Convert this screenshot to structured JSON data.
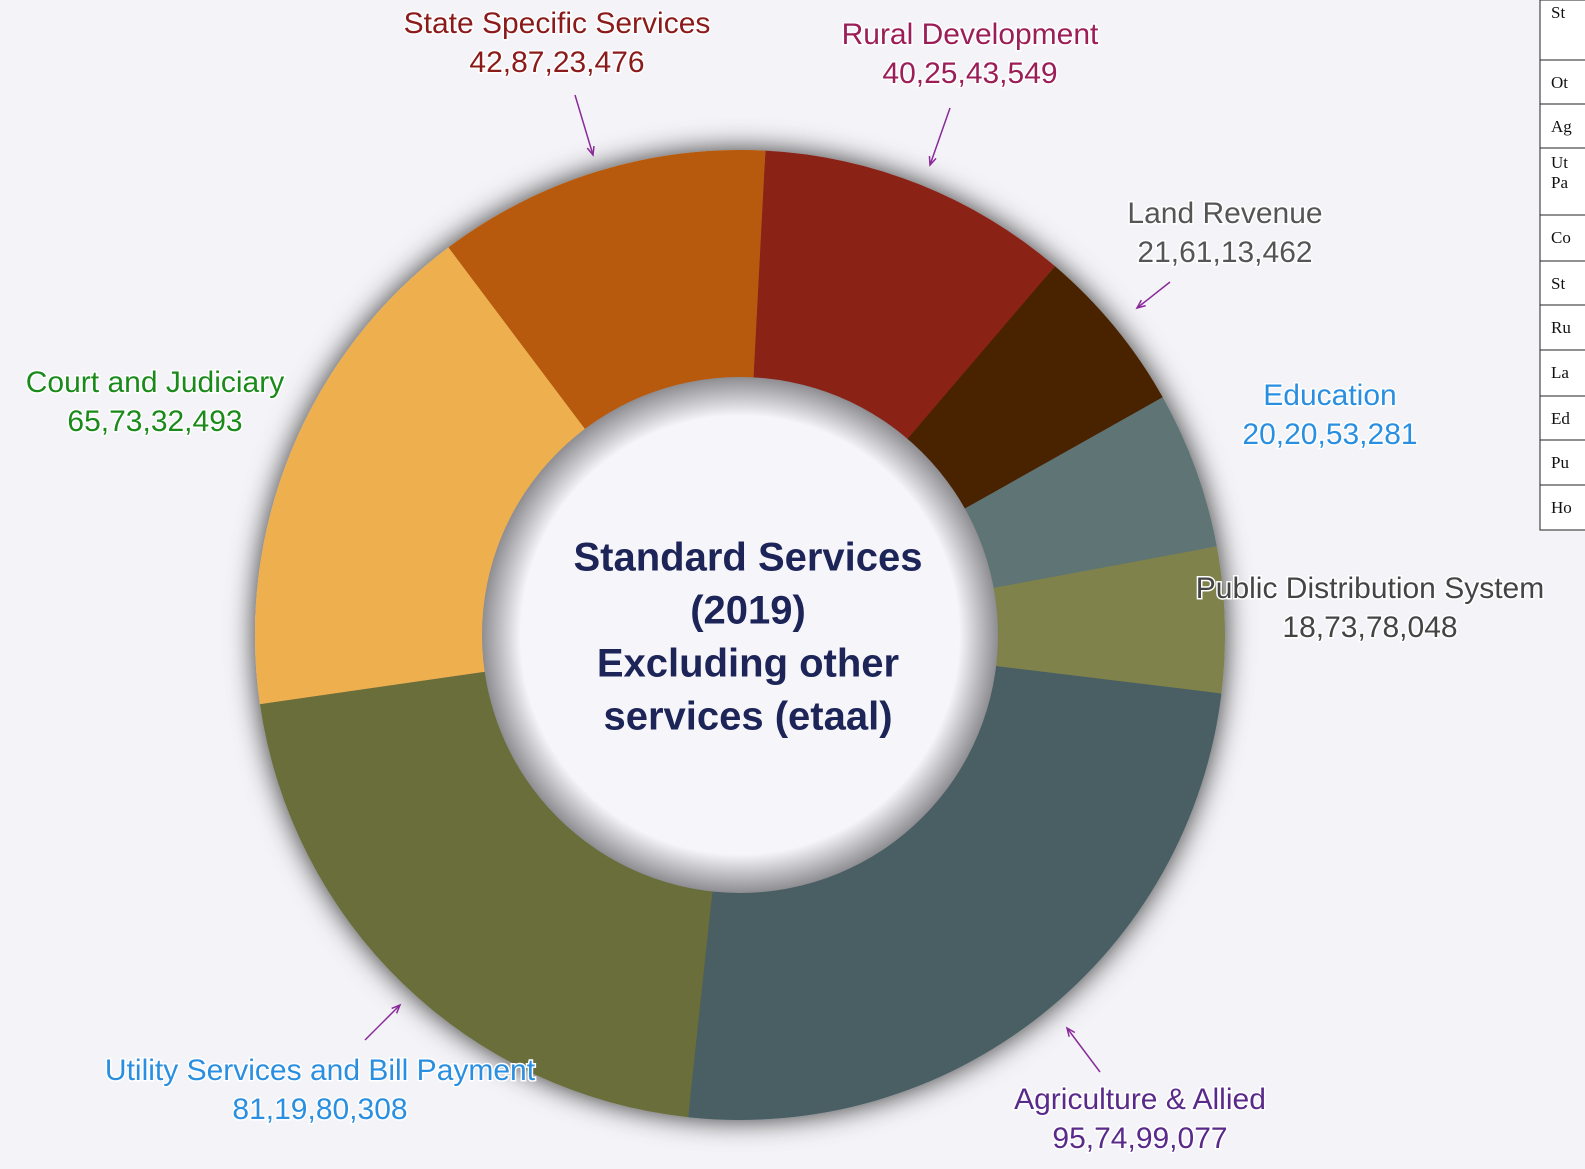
{
  "chart_data": {
    "type": "pie",
    "center_text": [
      "Standard Services",
      "(2019)",
      "Excluding other",
      "services (etaal)"
    ],
    "categories": [
      "Rural Development",
      "Land Revenue",
      "Education",
      "Public Distribution System",
      "Agriculture & Allied",
      "Utility Services and Bill Payment",
      "Court and Judiciary",
      "State Specific Services"
    ],
    "values": [
      402543549,
      216113462,
      202053281,
      187378048,
      957499077,
      811980308,
      657332493,
      428723476
    ],
    "value_labels": [
      "40,25,43,549",
      "21,61,13,462",
      "20,20,53,281",
      "18,73,78,048",
      "95,74,99,077",
      "81,19,80,308",
      "65,73,32,493",
      "42,87,23,476"
    ],
    "colors": [
      "#8a2119",
      "#4a2300",
      "#5e7575",
      "#7f834c",
      "#485f63",
      "#6b6e3a",
      "#eeb04f",
      "#b85a08"
    ],
    "label_colors": [
      "#9b1e58",
      "#555555",
      "#2a8fe0",
      "#444444",
      "#5a2a8a",
      "#2a8fe0",
      "#1a8a1a",
      "#8b1a1a"
    ]
  },
  "table": {
    "rows": [
      [
        "St"
      ],
      [
        "Ot"
      ],
      [
        "Ag"
      ],
      [
        "Ut",
        "Pa"
      ],
      [
        "Co"
      ],
      [
        "St"
      ],
      [
        "Ru"
      ],
      [
        "La"
      ],
      [
        "Ed"
      ],
      [
        "Pu"
      ],
      [
        "Ho"
      ]
    ]
  }
}
